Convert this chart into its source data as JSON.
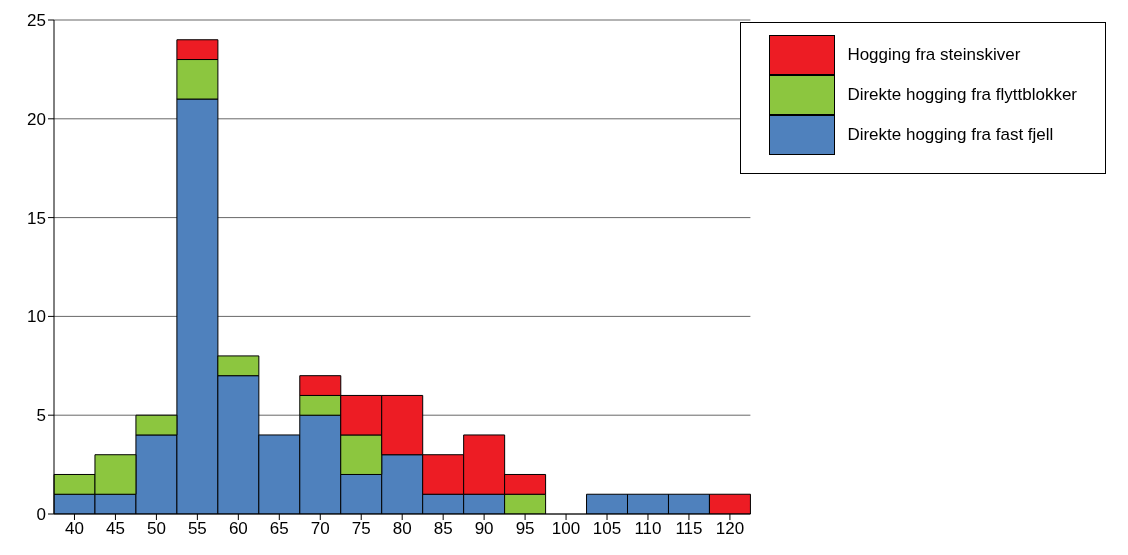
{
  "chart_data": {
    "type": "bar",
    "stacked": true,
    "categories": [
      "40",
      "45",
      "50",
      "55",
      "60",
      "65",
      "70",
      "75",
      "80",
      "85",
      "90",
      "95",
      "100",
      "105",
      "110",
      "115",
      "120"
    ],
    "series": [
      {
        "name": "Direkte hogging fra fast fjell",
        "color": "#4f81bd",
        "values": [
          1,
          1,
          4,
          21,
          7,
          4,
          5,
          2,
          3,
          1,
          1,
          0,
          0,
          1,
          1,
          1,
          0
        ]
      },
      {
        "name": "Direkte hogging fra flyttblokker",
        "color": "#8cc63f",
        "values": [
          1,
          2,
          1,
          2,
          1,
          0,
          1,
          2,
          0,
          0,
          0,
          1,
          0,
          0,
          0,
          0,
          0
        ]
      },
      {
        "name": "Hogging fra steinskiver",
        "color": "#ed1c24",
        "values": [
          0,
          0,
          0,
          1,
          0,
          0,
          1,
          2,
          3,
          2,
          3,
          1,
          0,
          0,
          0,
          0,
          1
        ]
      }
    ],
    "ylim": [
      0,
      25
    ],
    "yticks": [
      0,
      5,
      10,
      15,
      20,
      25
    ],
    "grid": "y",
    "legend": "top right"
  }
}
